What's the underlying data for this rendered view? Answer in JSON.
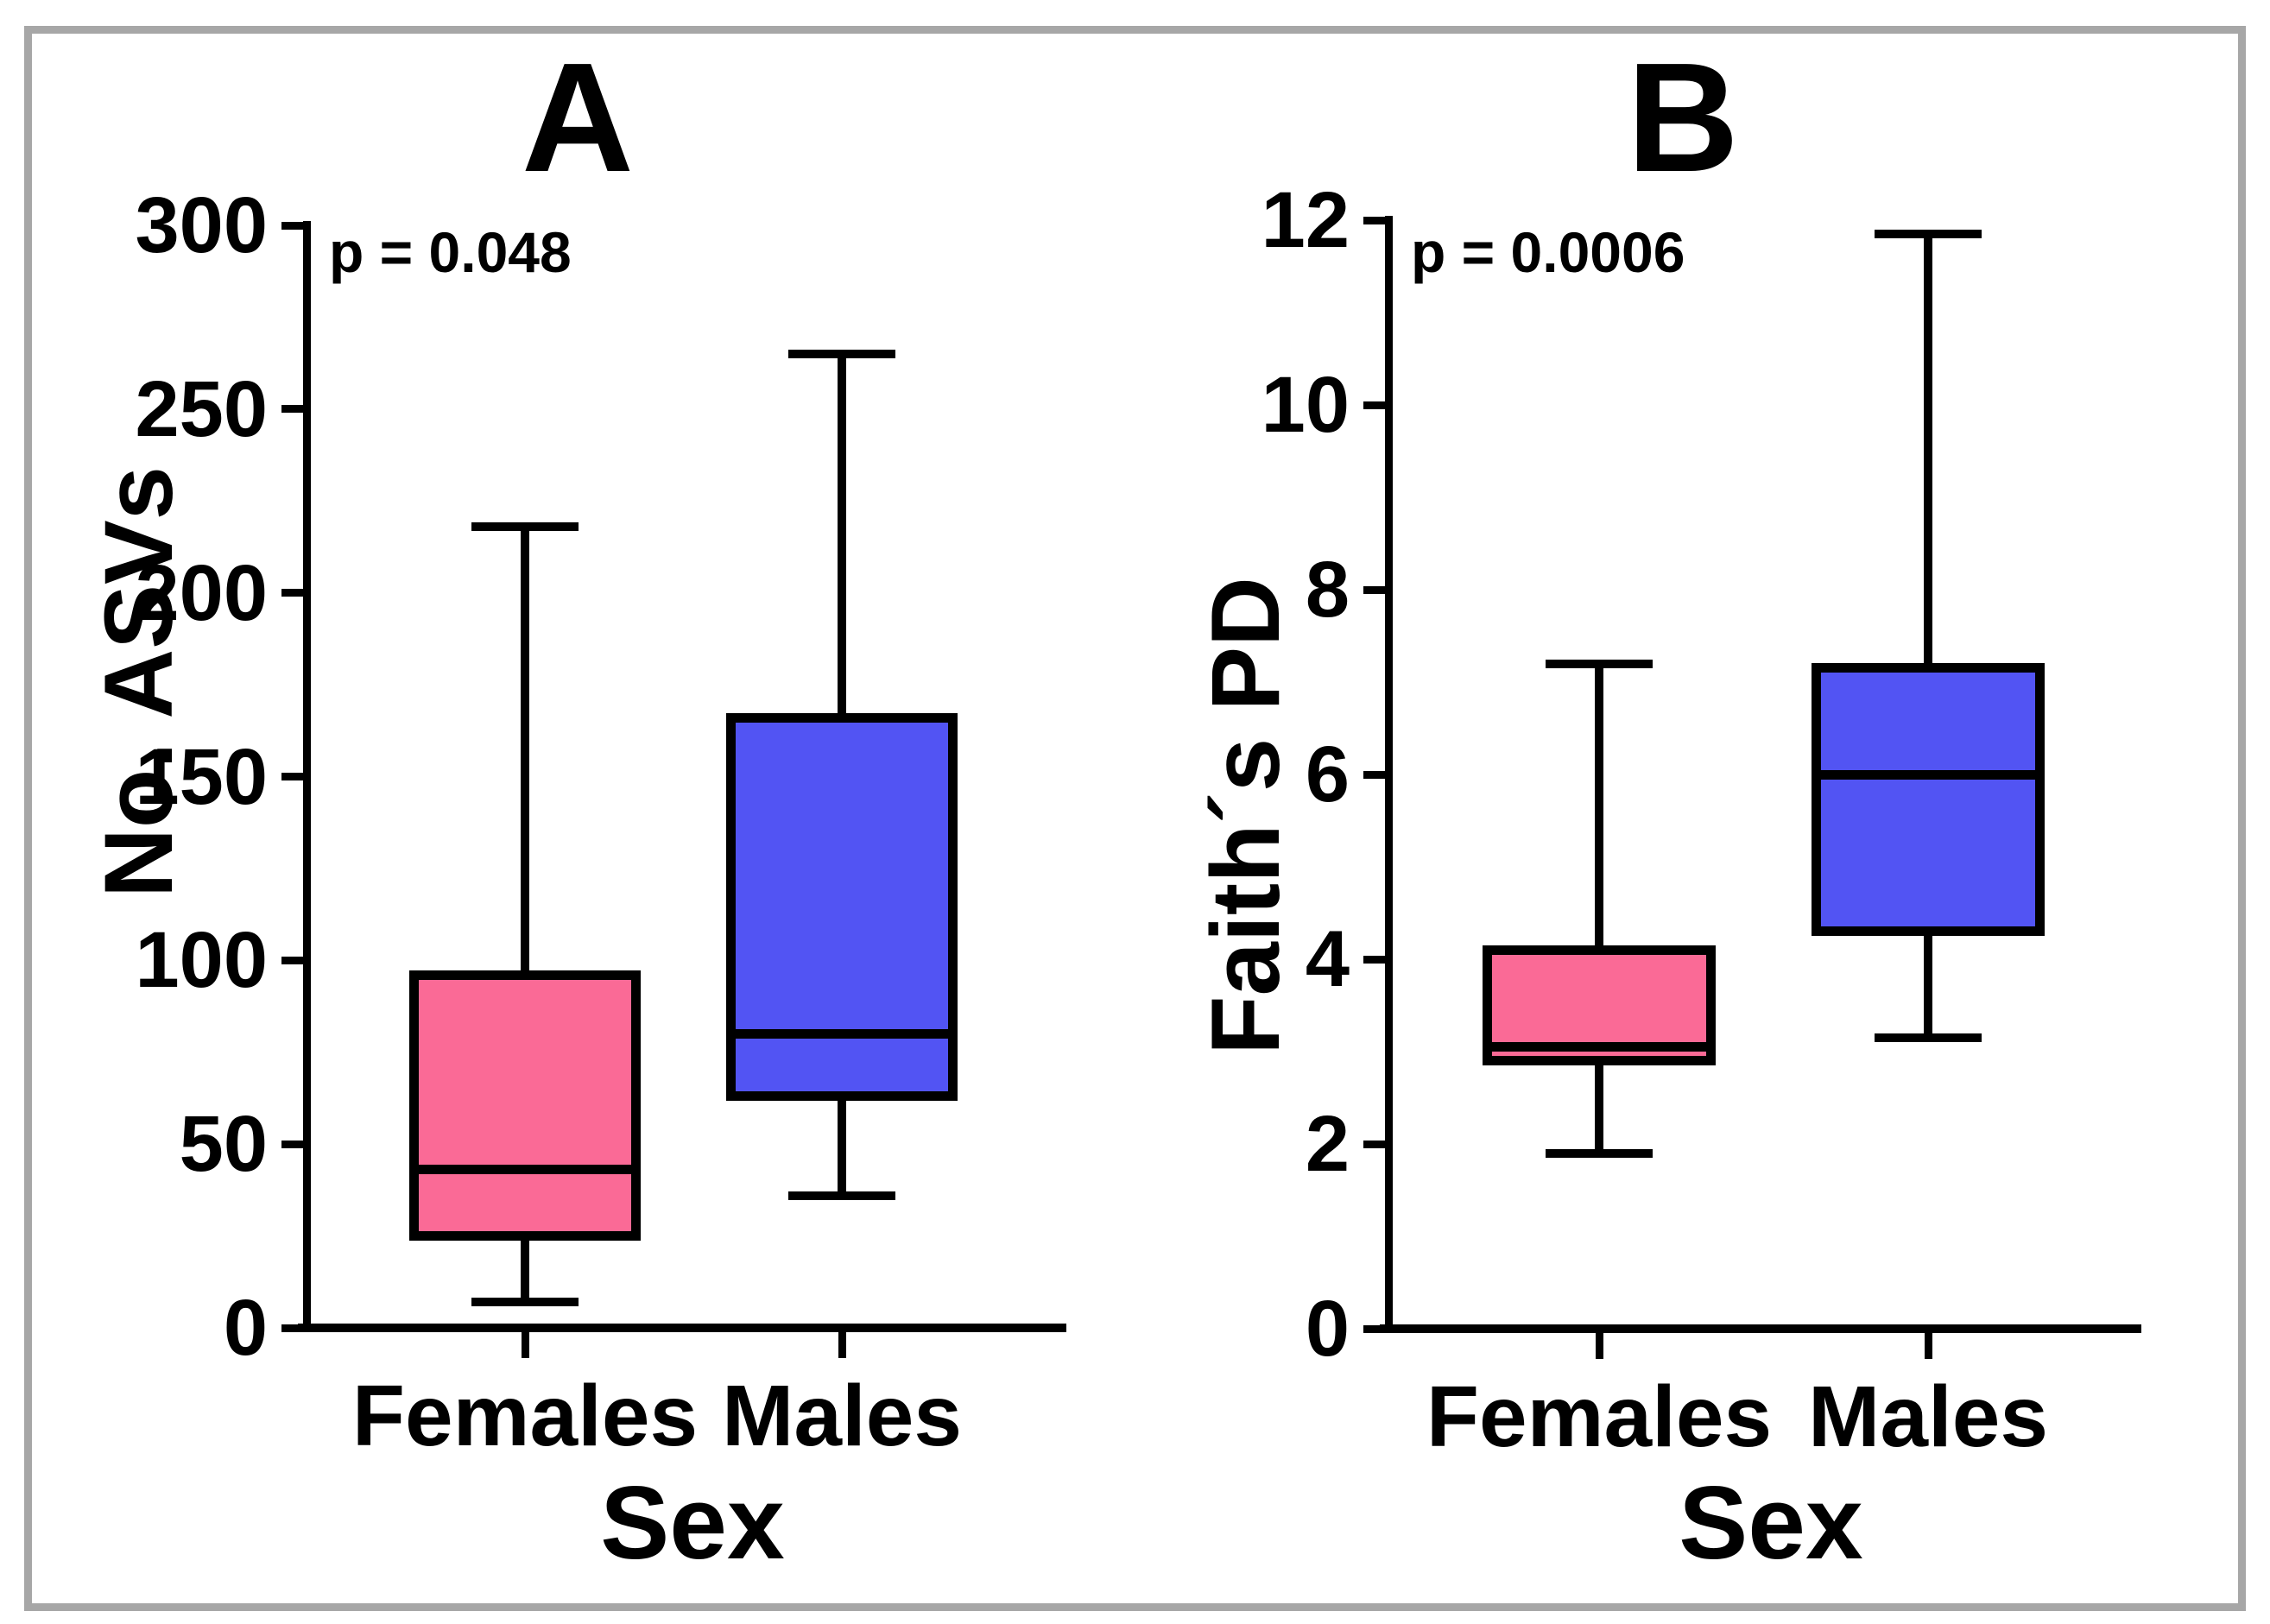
{
  "figure": {
    "background": "#ffffff",
    "frame_color": "#a7a7a7",
    "line_color": "#000000"
  },
  "colors": {
    "females_pink": "#fa6a96",
    "males_blue": "#5254f3"
  },
  "chart_data": [
    {
      "type": "box",
      "panel_letter": "A",
      "p_label": "p = 0.048",
      "xlabel": "Sex",
      "ylabel": "No. ASVs",
      "ylim": [
        0,
        300
      ],
      "ytick_step": 50,
      "ytick_labels": [
        "0",
        "50",
        "100",
        "150",
        "200",
        "250",
        "300"
      ],
      "grid": false,
      "legend": "none",
      "categories": [
        "Females",
        "Males"
      ],
      "series": [
        {
          "name": "Females",
          "min": 7,
          "q1": 25,
          "median": 43,
          "q3": 96,
          "max": 218,
          "fill": "#fa6a96"
        },
        {
          "name": "Males",
          "min": 36,
          "q1": 63,
          "median": 80,
          "q3": 166,
          "max": 265,
          "fill": "#5254f3"
        }
      ]
    },
    {
      "type": "box",
      "panel_letter": "B",
      "p_label": "p = 0.0006",
      "xlabel": "Sex",
      "ylabel": "Faith´s PD",
      "ylim": [
        0,
        12
      ],
      "ytick_step": 2,
      "ytick_labels": [
        "0",
        "2",
        "4",
        "6",
        "8",
        "10",
        "12"
      ],
      "grid": false,
      "legend": "none",
      "categories": [
        "Females",
        "Males"
      ],
      "series": [
        {
          "name": "Females",
          "min": 1.9,
          "q1": 2.9,
          "median": 3.05,
          "q3": 4.1,
          "max": 7.2,
          "fill": "#fa6a96"
        },
        {
          "name": "Males",
          "min": 3.15,
          "q1": 4.3,
          "median": 6.0,
          "q3": 7.15,
          "max": 11.85,
          "fill": "#5254f3"
        }
      ]
    }
  ]
}
